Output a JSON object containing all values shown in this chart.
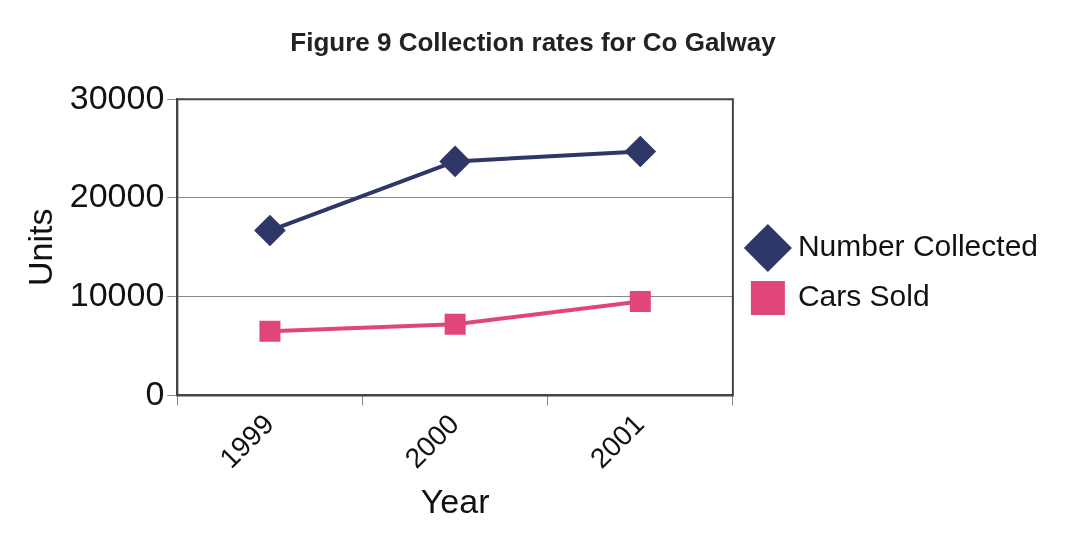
{
  "chart_data": {
    "type": "line",
    "title": "Figure 9 Collection rates for Co Galway",
    "xlabel": "Year",
    "ylabel": "Units",
    "categories": [
      "1999",
      "2000",
      "2001"
    ],
    "series": [
      {
        "name": "Number Collected",
        "color": "#2e3768",
        "values": [
          16700,
          23700,
          24700
        ],
        "marker": "diamond"
      },
      {
        "name": "Cars Sold",
        "color": "#e0457b",
        "values": [
          6500,
          7200,
          9500
        ],
        "marker": "square"
      }
    ],
    "ylim": [
      0,
      30000
    ],
    "yticks": [
      0,
      10000,
      20000,
      30000
    ],
    "grid": "y",
    "legend": "right",
    "line_style": "solid"
  }
}
